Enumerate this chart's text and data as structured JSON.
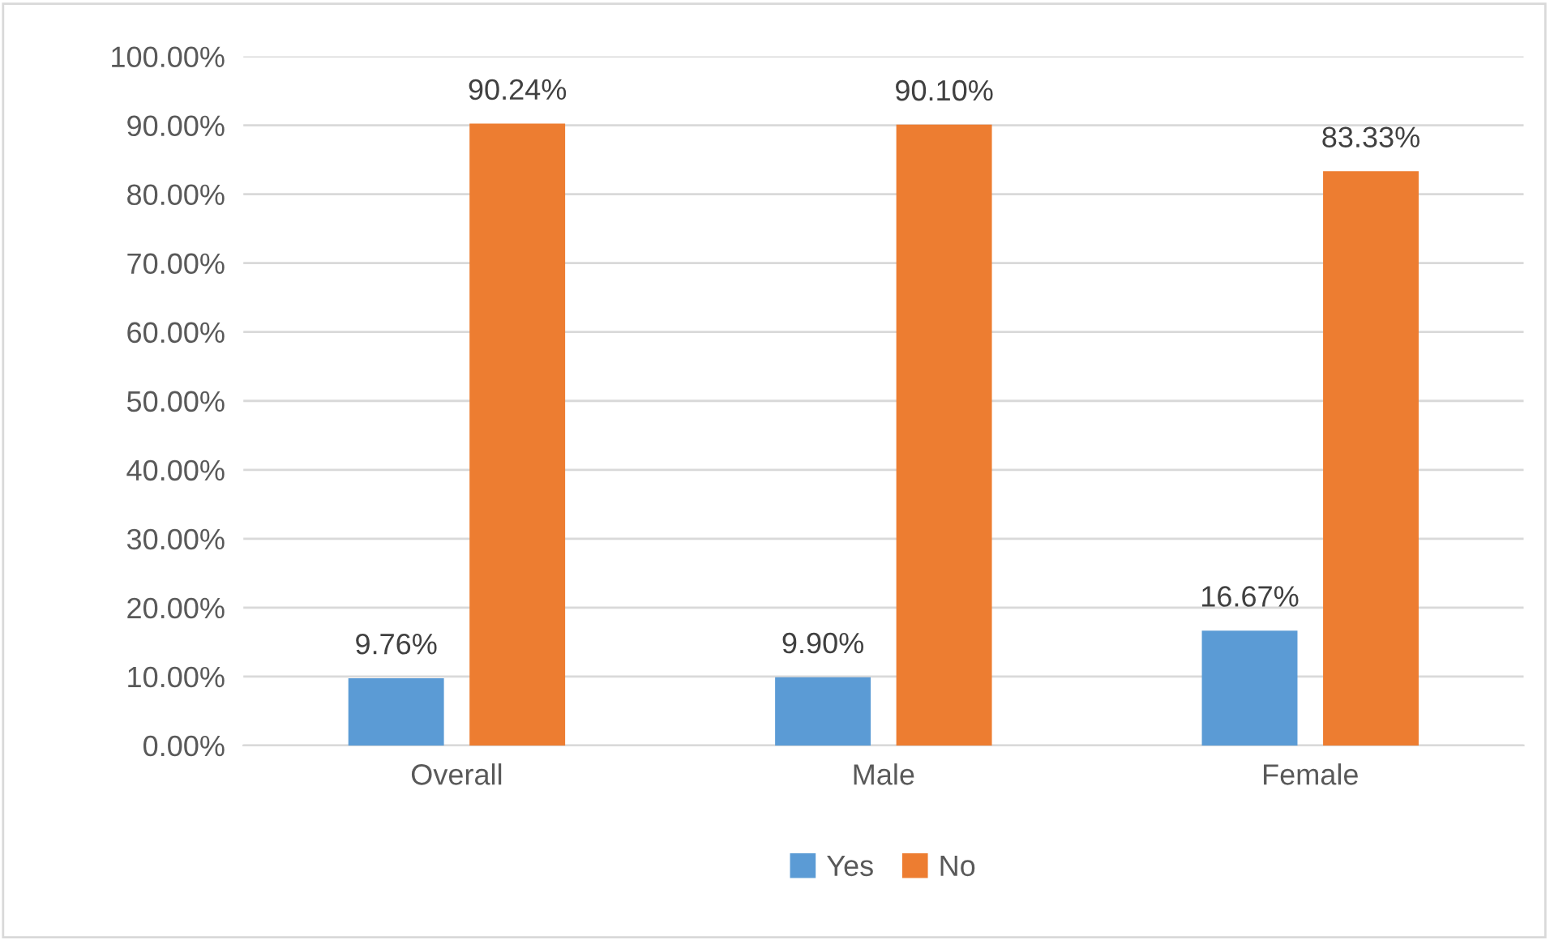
{
  "chart_data": {
    "type": "bar",
    "categories": [
      "Overall",
      "Male",
      "Female"
    ],
    "series": [
      {
        "name": "Yes",
        "color": "#5b9bd5",
        "values": [
          9.76,
          9.9,
          16.67
        ],
        "value_labels": [
          "9.76%",
          "9.90%",
          "16.67%"
        ]
      },
      {
        "name": "No",
        "color": "#ed7d31",
        "values": [
          90.24,
          90.1,
          83.33
        ],
        "value_labels": [
          "90.24%",
          "90.10%",
          "83.33%"
        ]
      }
    ],
    "ylim": [
      0,
      100
    ],
    "yticks": [
      {
        "value": 0,
        "label": "0.00%"
      },
      {
        "value": 10,
        "label": "10.00%"
      },
      {
        "value": 20,
        "label": "20.00%"
      },
      {
        "value": 30,
        "label": "30.00%"
      },
      {
        "value": 40,
        "label": "40.00%"
      },
      {
        "value": 50,
        "label": "50.00%"
      },
      {
        "value": 60,
        "label": "60.00%"
      },
      {
        "value": 70,
        "label": "70.00%"
      },
      {
        "value": 80,
        "label": "80.00%"
      },
      {
        "value": 90,
        "label": "90.00%"
      },
      {
        "value": 100,
        "label": "100.00%"
      }
    ],
    "grid": "y",
    "legend": "bottom"
  }
}
